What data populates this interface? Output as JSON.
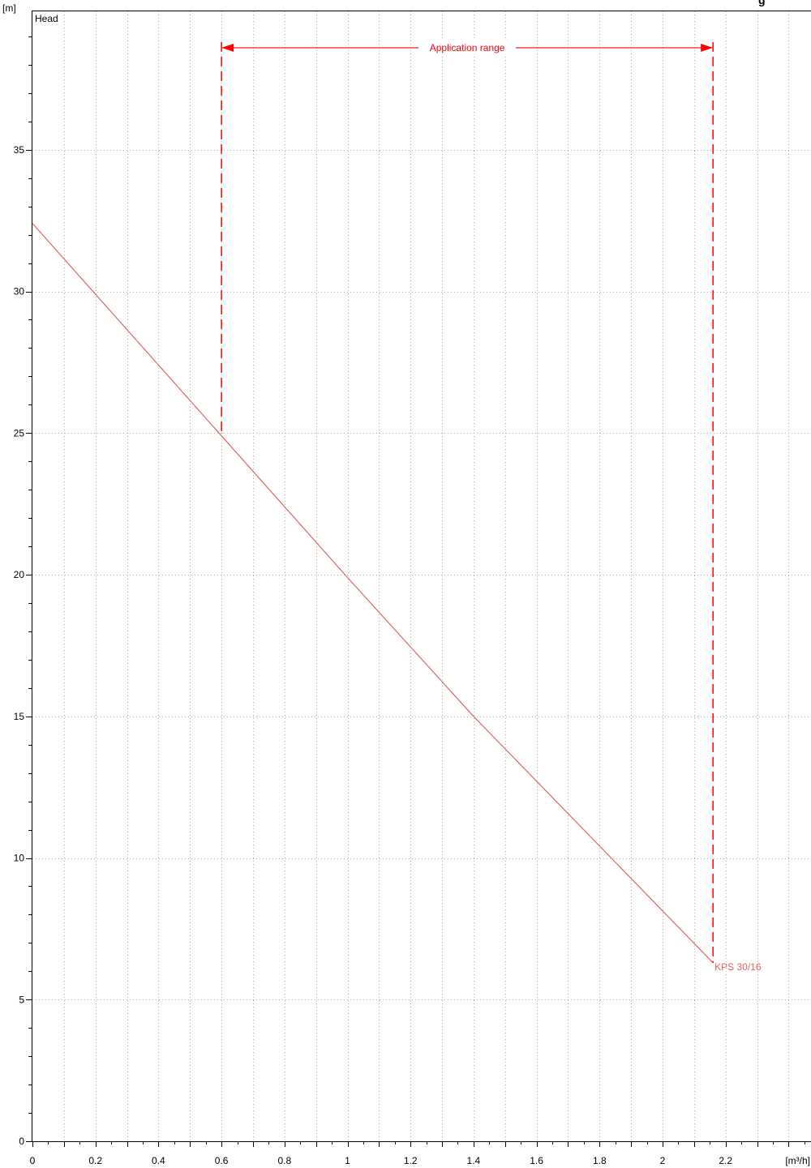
{
  "chart_data": {
    "type": "line",
    "y_unit": "[m]",
    "x_unit": "[m³/h]",
    "y_axis_label": "Head",
    "corner_fragment": "g",
    "xlim": [
      0,
      2.47
    ],
    "ylim": [
      0,
      39
    ],
    "x_ticks": [
      "0",
      "0.2",
      "0.4",
      "0.6",
      "0.8",
      "1",
      "1.2",
      "1.4",
      "1.6",
      "1.8",
      "2",
      "2.2"
    ],
    "x_tick_values": [
      0,
      0.2,
      0.4,
      0.6,
      0.8,
      1.0,
      1.2,
      1.4,
      1.6,
      1.8,
      2.0,
      2.2
    ],
    "y_ticks": [
      "0",
      "5",
      "10",
      "15",
      "20",
      "25",
      "30",
      "35"
    ],
    "y_tick_values": [
      0,
      5,
      10,
      15,
      20,
      25,
      30,
      35
    ],
    "grid": true,
    "series": [
      {
        "name": "KPS 30/16",
        "color": "#e06666",
        "x": [
          0,
          0.6,
          1.0,
          1.4,
          2.16
        ],
        "y": [
          32.4,
          24.9,
          19.9,
          15.0,
          6.3
        ]
      }
    ],
    "annotation": {
      "text": "Application range",
      "color": "#ff0000",
      "x_start": 0.6,
      "x_end": 2.16,
      "arrow_y": 38.6
    }
  }
}
